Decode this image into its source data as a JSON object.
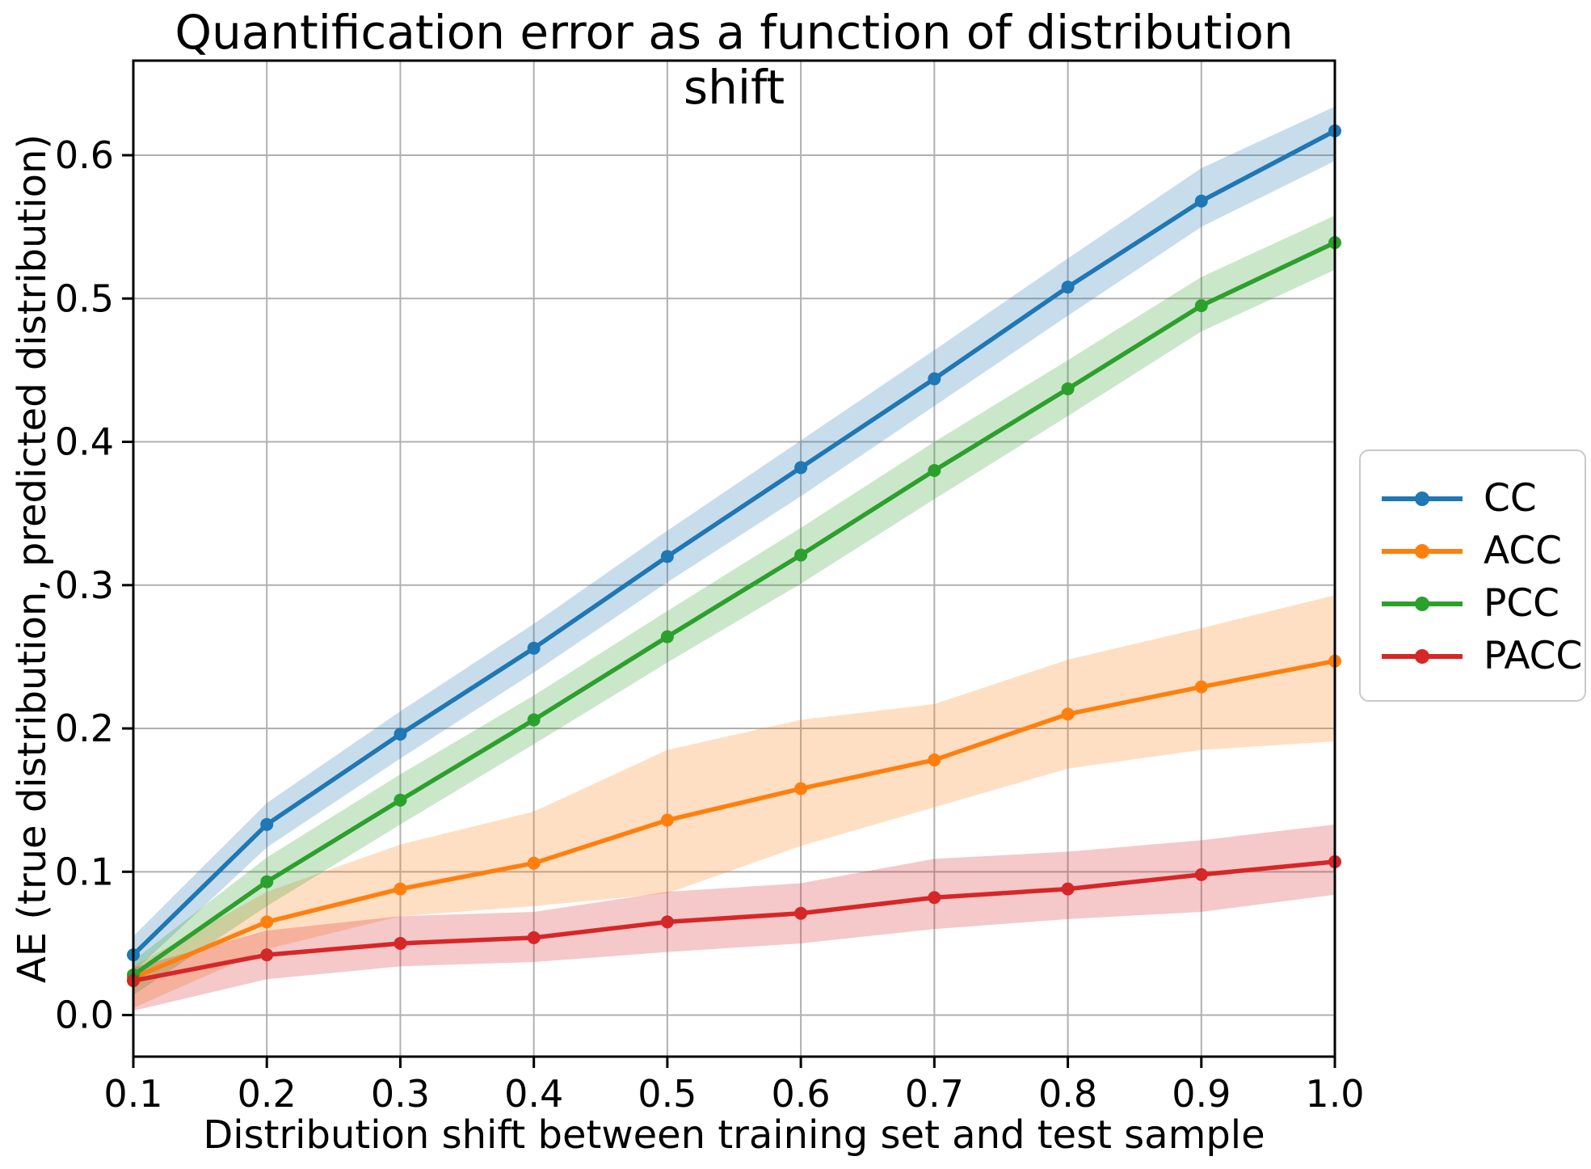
{
  "chart_data": {
    "type": "line",
    "title": "Quantification error as a function of distribution shift",
    "xlabel": "Distribution shift between training set and test sample",
    "ylabel": "AE (true distribution, predicted distribution)",
    "x": [
      0.1,
      0.2,
      0.3,
      0.4,
      0.5,
      0.6,
      0.7,
      0.8,
      0.9,
      1.0
    ],
    "xtick_labels": [
      "0.1",
      "0.2",
      "0.3",
      "0.4",
      "0.5",
      "0.6",
      "0.7",
      "0.8",
      "0.9",
      "1.0"
    ],
    "yticks": [
      0.0,
      0.1,
      0.2,
      0.3,
      0.4,
      0.5,
      0.6
    ],
    "ytick_labels": [
      "0.0",
      "0.1",
      "0.2",
      "0.3",
      "0.4",
      "0.5",
      "0.6"
    ],
    "xlim": [
      0.1,
      1.0
    ],
    "ylim": [
      -0.029,
      0.666
    ],
    "grid": true,
    "grid_color": "#b0b0b0",
    "background": "#ffffff",
    "legend_position": "center-right-outside",
    "band_opacity": 0.25,
    "series": [
      {
        "name": "CC",
        "color": "#1f77b4",
        "marker": "circle",
        "values": [
          0.042,
          0.133,
          0.196,
          0.256,
          0.32,
          0.382,
          0.444,
          0.508,
          0.568,
          0.617
        ],
        "band_lower": [
          0.03,
          0.117,
          0.179,
          0.239,
          0.302,
          0.362,
          0.425,
          0.488,
          0.55,
          0.596
        ],
        "band_upper": [
          0.055,
          0.148,
          0.212,
          0.273,
          0.338,
          0.401,
          0.464,
          0.528,
          0.591,
          0.634
        ]
      },
      {
        "name": "ACC",
        "color": "#ff7f0e",
        "marker": "circle",
        "values": [
          0.026,
          0.065,
          0.088,
          0.106,
          0.136,
          0.158,
          0.178,
          0.21,
          0.229,
          0.247
        ],
        "band_lower": [
          0.005,
          0.046,
          0.069,
          0.076,
          0.085,
          0.118,
          0.145,
          0.172,
          0.185,
          0.191
        ],
        "band_upper": [
          0.034,
          0.086,
          0.119,
          0.142,
          0.185,
          0.206,
          0.217,
          0.248,
          0.27,
          0.293
        ]
      },
      {
        "name": "PCC",
        "color": "#2ca02c",
        "marker": "circle",
        "values": [
          0.028,
          0.093,
          0.15,
          0.206,
          0.264,
          0.321,
          0.38,
          0.437,
          0.495,
          0.539
        ],
        "band_lower": [
          0.014,
          0.076,
          0.133,
          0.189,
          0.246,
          0.301,
          0.36,
          0.418,
          0.477,
          0.52
        ],
        "band_upper": [
          0.038,
          0.11,
          0.168,
          0.223,
          0.282,
          0.34,
          0.4,
          0.457,
          0.515,
          0.558
        ]
      },
      {
        "name": "PACC",
        "color": "#d62728",
        "marker": "circle",
        "values": [
          0.024,
          0.042,
          0.05,
          0.054,
          0.065,
          0.071,
          0.082,
          0.088,
          0.098,
          0.107
        ],
        "band_lower": [
          0.003,
          0.025,
          0.034,
          0.037,
          0.044,
          0.05,
          0.06,
          0.067,
          0.072,
          0.084
        ],
        "band_upper": [
          0.033,
          0.059,
          0.069,
          0.072,
          0.086,
          0.092,
          0.109,
          0.114,
          0.122,
          0.133
        ]
      }
    ]
  }
}
